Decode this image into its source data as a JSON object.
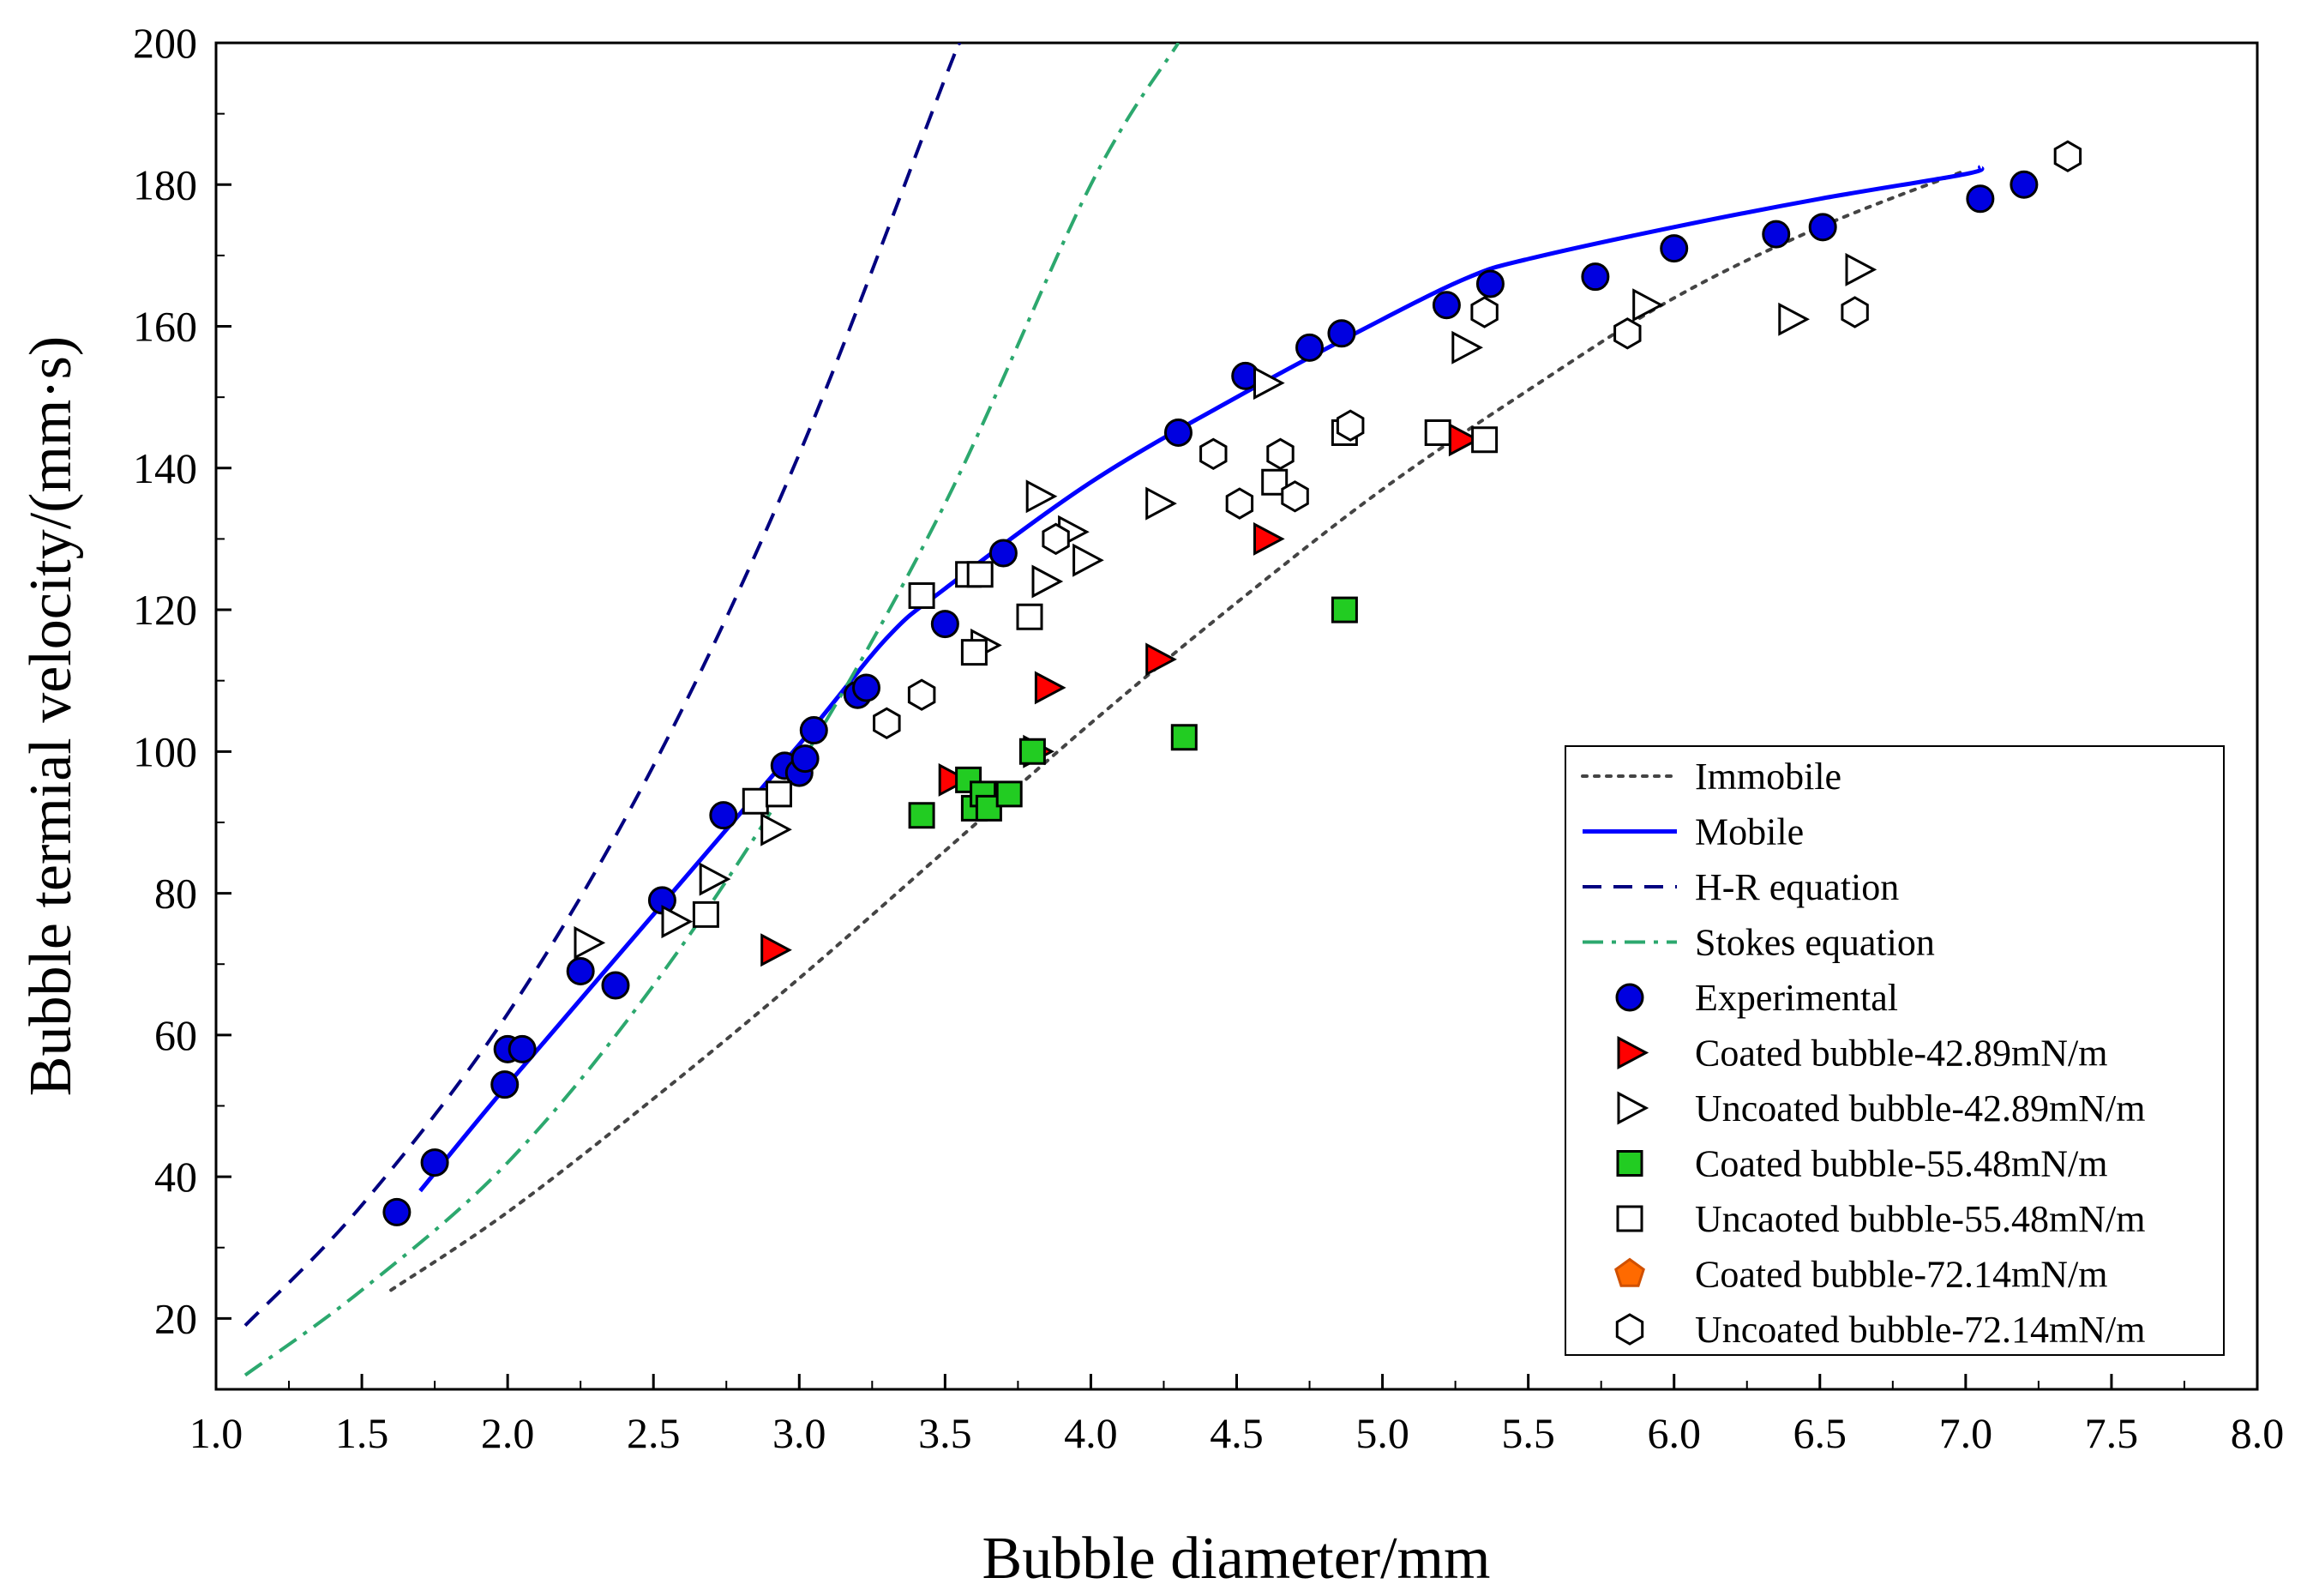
{
  "chart_data": {
    "type": "scatter",
    "title": "",
    "xlabel": "Bubble diameter/mm",
    "ylabel": "Bubble termial velocity/(mm·s)",
    "xlim": [
      1.0,
      8.0
    ],
    "ylim": [
      10,
      200
    ],
    "xticks": [
      1.0,
      1.5,
      2.0,
      2.5,
      3.0,
      3.5,
      4.0,
      4.5,
      5.0,
      5.5,
      6.0,
      6.5,
      7.0,
      7.5,
      8.0
    ],
    "xtick_labels": [
      "1.0",
      "1.5",
      "2.0",
      "2.5",
      "3.0",
      "3.5",
      "4.0",
      "4.5",
      "5.0",
      "5.5",
      "6.0",
      "6.5",
      "7.0",
      "7.5",
      "8.0"
    ],
    "yticks": [
      20,
      40,
      60,
      80,
      100,
      120,
      140,
      160,
      180,
      200
    ],
    "ytick_labels": [
      "20",
      "40",
      "60",
      "80",
      "100",
      "120",
      "140",
      "160",
      "180",
      "200"
    ],
    "legend_position": "bottom-right",
    "lines": [
      {
        "name": "Immobile",
        "color": "#444444",
        "dash": "dotted",
        "x": [
          1.6,
          2.0,
          2.5,
          3.0,
          3.5,
          4.0,
          4.5,
          5.0,
          5.5,
          6.0,
          6.5,
          7.0
        ],
        "y": [
          24,
          35,
          51,
          68,
          86,
          104,
          121,
          137,
          151,
          164,
          174,
          182
        ]
      },
      {
        "name": "Mobile",
        "color": "#0000ff",
        "dash": "solid",
        "x": [
          1.7,
          2.0,
          2.5,
          3.0,
          3.3,
          3.5,
          4.0,
          4.5,
          5.0,
          5.3,
          5.5,
          6.0,
          6.5,
          7.0,
          7.05
        ],
        "y": [
          38,
          53,
          77,
          101,
          116,
          123,
          138,
          150,
          161,
          167,
          169.5,
          174,
          178,
          181.5,
          182.5
        ]
      },
      {
        "name": "H-R equation",
        "color": "#000080",
        "dash": "dashed",
        "x": [
          1.1,
          1.5,
          2.0,
          2.5,
          3.0,
          3.5,
          3.55
        ],
        "y": [
          19,
          36,
          63,
          98,
          142,
          195,
          200
        ]
      },
      {
        "name": "Stokes equation",
        "color": "#2ca86e",
        "dash": "dashdot",
        "x": [
          1.1,
          1.5,
          2.0,
          2.5,
          3.0,
          3.5,
          4.0,
          4.3
        ],
        "y": [
          12,
          24,
          42,
          67,
          98,
          135,
          180,
          200
        ]
      }
    ],
    "series": [
      {
        "name": "Experimental",
        "marker": "circle",
        "fill": "#0000e0",
        "stroke": "#000000",
        "points": [
          [
            1.62,
            35
          ],
          [
            1.75,
            42
          ],
          [
            1.99,
            53
          ],
          [
            2.0,
            58
          ],
          [
            2.05,
            58
          ],
          [
            2.25,
            69
          ],
          [
            2.37,
            67
          ],
          [
            2.53,
            79
          ],
          [
            2.74,
            91
          ],
          [
            2.95,
            98
          ],
          [
            3.0,
            97
          ],
          [
            3.02,
            99
          ],
          [
            3.05,
            103
          ],
          [
            3.2,
            108
          ],
          [
            3.23,
            109
          ],
          [
            3.5,
            118
          ],
          [
            3.7,
            128
          ],
          [
            4.3,
            145
          ],
          [
            4.53,
            153
          ],
          [
            4.75,
            157
          ],
          [
            4.86,
            159
          ],
          [
            5.22,
            163
          ],
          [
            5.37,
            166
          ],
          [
            5.73,
            167
          ],
          [
            6.0,
            171
          ],
          [
            6.35,
            173
          ],
          [
            6.51,
            174
          ],
          [
            7.05,
            178
          ],
          [
            7.2,
            180
          ]
        ]
      },
      {
        "name": "Coated bubble-42.89mN/m",
        "marker": "triangle-right",
        "fill": "#ff0000",
        "stroke": "#000000",
        "points": [
          [
            2.91,
            72
          ],
          [
            3.52,
            96
          ],
          [
            3.81,
            100
          ],
          [
            3.85,
            109
          ],
          [
            4.23,
            113
          ],
          [
            4.6,
            130
          ],
          [
            5.27,
            144
          ]
        ]
      },
      {
        "name": "Uncoated bubble-42.89mN/m",
        "marker": "triangle-right",
        "fill": "#ffffff",
        "stroke": "#000000",
        "points": [
          [
            2.27,
            73
          ],
          [
            2.57,
            76
          ],
          [
            2.7,
            82
          ],
          [
            2.91,
            89
          ],
          [
            3.63,
            115
          ],
          [
            3.82,
            136
          ],
          [
            3.84,
            124
          ],
          [
            3.93,
            131
          ],
          [
            3.98,
            127
          ],
          [
            4.23,
            135
          ],
          [
            4.6,
            152
          ],
          [
            5.28,
            157
          ],
          [
            5.9,
            163
          ],
          [
            6.4,
            161
          ],
          [
            6.63,
            168
          ]
        ]
      },
      {
        "name": "Coated bubble-55.48mN/m",
        "marker": "square",
        "fill": "#22cc22",
        "stroke": "#000000",
        "points": [
          [
            3.42,
            91
          ],
          [
            3.58,
            96
          ],
          [
            3.6,
            92
          ],
          [
            3.63,
            94
          ],
          [
            3.65,
            92
          ],
          [
            3.72,
            94
          ],
          [
            3.8,
            100
          ],
          [
            4.32,
            102
          ],
          [
            4.87,
            120
          ]
        ]
      },
      {
        "name": "Uncaoted bubble-55.48mN/m",
        "marker": "square",
        "fill": "#ffffff",
        "stroke": "#000000",
        "points": [
          [
            2.68,
            77
          ],
          [
            2.85,
            93
          ],
          [
            2.93,
            94
          ],
          [
            3.42,
            122
          ],
          [
            3.58,
            125
          ],
          [
            3.6,
            114
          ],
          [
            3.62,
            125
          ],
          [
            3.79,
            119
          ],
          [
            4.63,
            138
          ],
          [
            4.87,
            145
          ],
          [
            5.19,
            145
          ],
          [
            5.35,
            144
          ]
        ]
      },
      {
        "name": "Coated bubble-72.14mN/m",
        "marker": "pentagon",
        "fill": "#ff6a00",
        "stroke": "#d05000",
        "points": []
      },
      {
        "name": "Uncoated bubble-72.14mN/m",
        "marker": "hexagon",
        "fill": "#ffffff",
        "stroke": "#000000",
        "points": [
          [
            3.3,
            104
          ],
          [
            3.42,
            108
          ],
          [
            3.88,
            130
          ],
          [
            4.42,
            142
          ],
          [
            4.51,
            135
          ],
          [
            4.65,
            142
          ],
          [
            4.7,
            136
          ],
          [
            4.89,
            146
          ],
          [
            5.35,
            162
          ],
          [
            5.84,
            159
          ],
          [
            6.62,
            162
          ],
          [
            7.35,
            184
          ]
        ]
      }
    ]
  }
}
